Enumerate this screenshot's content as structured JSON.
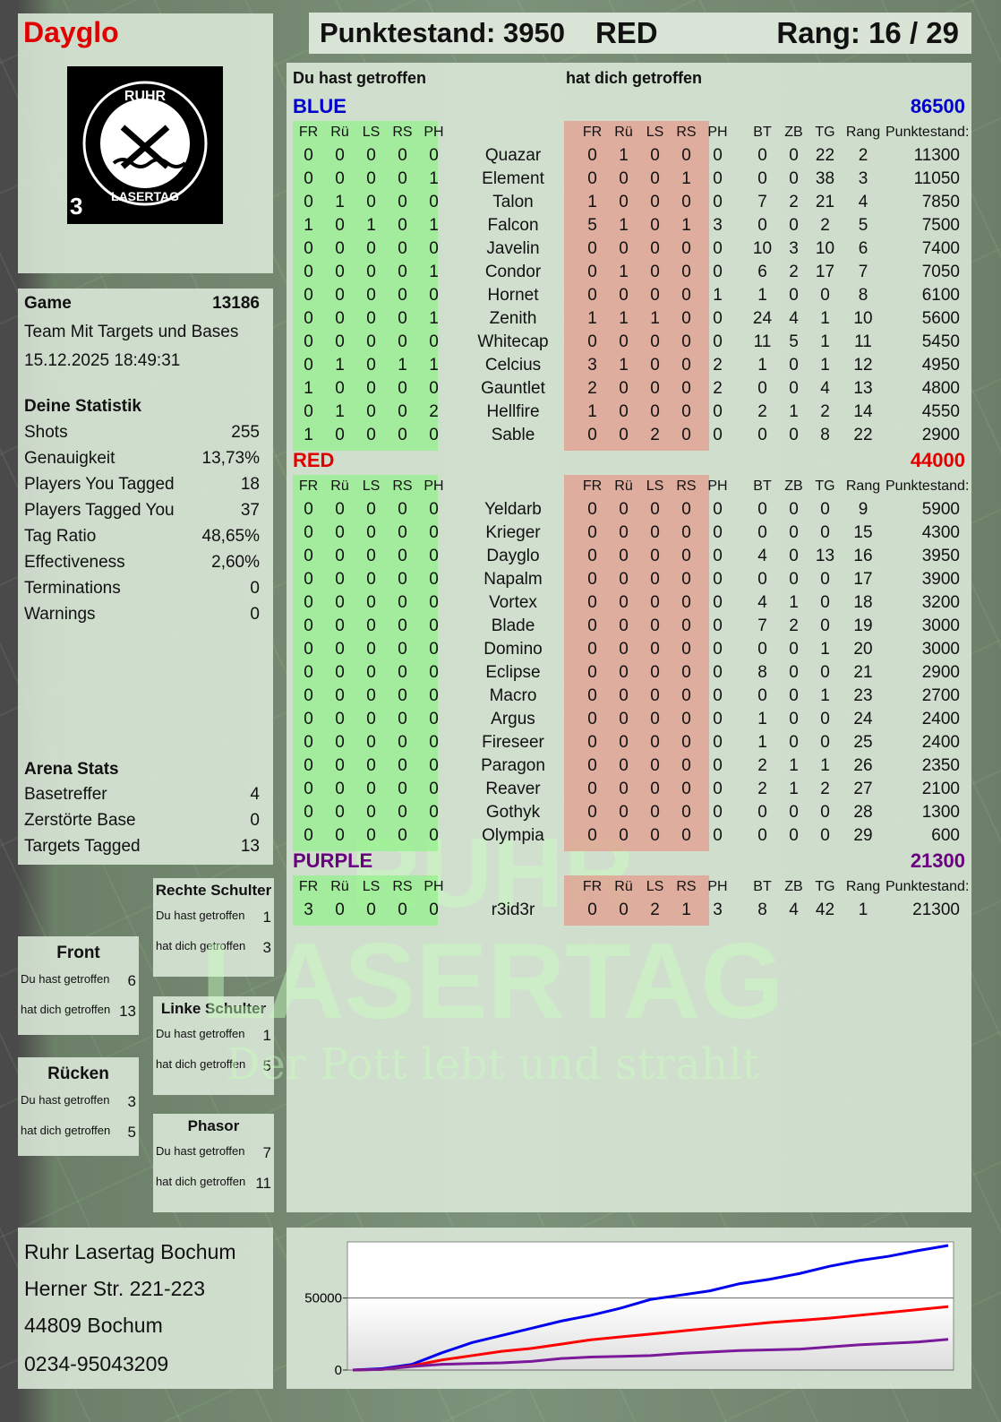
{
  "player": {
    "name": "Dayglo",
    "logo_text": "RUHR LASERTAG",
    "logo_number": "3"
  },
  "header": {
    "score_label": "Punktestand: 3950",
    "team": "RED",
    "rank_label": "Rang: 16 / 29"
  },
  "game": {
    "label": "Game",
    "id": "13186",
    "mode": "Team Mit Targets und Bases",
    "datetime": "15.12.2025 18:49:31"
  },
  "stats": {
    "title": "Deine Statistik",
    "rows": [
      {
        "label": "Shots",
        "value": "255"
      },
      {
        "label": "Genauigkeit",
        "value": "13,73%"
      },
      {
        "label": "Players You Tagged",
        "value": "18"
      },
      {
        "label": "Players Tagged You",
        "value": "37"
      },
      {
        "label": "Tag Ratio",
        "value": "48,65%"
      },
      {
        "label": "Effectiveness",
        "value": "2,60%"
      },
      {
        "label": "Terminations",
        "value": "0"
      },
      {
        "label": "Warnings",
        "value": "0"
      }
    ]
  },
  "arena": {
    "title": "Arena Stats",
    "rows": [
      {
        "label": "Basetreffer",
        "value": "4"
      },
      {
        "label": "Zerstörte Base",
        "value": "0"
      },
      {
        "label": "Targets Tagged",
        "value": "13"
      }
    ]
  },
  "zones": [
    {
      "title": "Rechte Schulter",
      "hit_label": "Du hast getroffen",
      "hit": "1",
      "got_label": "hat dich getroffen",
      "got": "3"
    },
    {
      "title": "Front",
      "hit_label": "Du hast getroffen",
      "hit": "6",
      "got_label": "hat dich getroffen",
      "got": "13"
    },
    {
      "title": "Linke Schulter",
      "hit_label": "Du hast getroffen",
      "hit": "1",
      "got_label": "hat dich getroffen",
      "got": "5"
    },
    {
      "title": "Rücken",
      "hit_label": "Du hast getroffen",
      "hit": "3",
      "got_label": "hat dich getroffen",
      "got": "5"
    },
    {
      "title": "Phasor",
      "hit_label": "Du hast getroffen",
      "hit": "7",
      "got_label": "hat dich getroffen",
      "got": "11"
    }
  ],
  "address": {
    "name": "Ruhr Lasertag Bochum",
    "street": "Herner Str. 221-223",
    "city": "44809 Bochum",
    "phone": "0234-95043209"
  },
  "table": {
    "you_hit_label": "Du hast getroffen",
    "hit_you_label": "hat dich getroffen",
    "columns": [
      "FR",
      "Rü",
      "LS",
      "RS",
      "PH",
      "",
      "FR",
      "Rü",
      "LS",
      "RS",
      "PH",
      "BT",
      "ZB",
      "TG",
      "Rang",
      "Punktestand:"
    ],
    "teams": [
      {
        "name": "BLUE",
        "score": "86500",
        "color": "#0000cc",
        "players": [
          [
            "0",
            "0",
            "0",
            "0",
            "0",
            "Quazar",
            "0",
            "1",
            "0",
            "0",
            "0",
            "0",
            "0",
            "22",
            "2",
            "11300"
          ],
          [
            "0",
            "0",
            "0",
            "0",
            "1",
            "Element",
            "0",
            "0",
            "0",
            "1",
            "0",
            "0",
            "0",
            "38",
            "3",
            "11050"
          ],
          [
            "0",
            "1",
            "0",
            "0",
            "0",
            "Talon",
            "1",
            "0",
            "0",
            "0",
            "0",
            "7",
            "2",
            "21",
            "4",
            "7850"
          ],
          [
            "1",
            "0",
            "1",
            "0",
            "1",
            "Falcon",
            "5",
            "1",
            "0",
            "1",
            "3",
            "0",
            "0",
            "2",
            "5",
            "7500"
          ],
          [
            "0",
            "0",
            "0",
            "0",
            "0",
            "Javelin",
            "0",
            "0",
            "0",
            "0",
            "0",
            "10",
            "3",
            "10",
            "6",
            "7400"
          ],
          [
            "0",
            "0",
            "0",
            "0",
            "1",
            "Condor",
            "0",
            "1",
            "0",
            "0",
            "0",
            "6",
            "2",
            "17",
            "7",
            "7050"
          ],
          [
            "0",
            "0",
            "0",
            "0",
            "0",
            "Hornet",
            "0",
            "0",
            "0",
            "0",
            "1",
            "1",
            "0",
            "0",
            "8",
            "6100"
          ],
          [
            "0",
            "0",
            "0",
            "0",
            "1",
            "Zenith",
            "1",
            "1",
            "1",
            "0",
            "0",
            "24",
            "4",
            "1",
            "10",
            "5600"
          ],
          [
            "0",
            "0",
            "0",
            "0",
            "0",
            "Whitecap",
            "0",
            "0",
            "0",
            "0",
            "0",
            "11",
            "5",
            "1",
            "11",
            "5450"
          ],
          [
            "0",
            "1",
            "0",
            "1",
            "1",
            "Celcius",
            "3",
            "1",
            "0",
            "0",
            "2",
            "1",
            "0",
            "1",
            "12",
            "4950"
          ],
          [
            "1",
            "0",
            "0",
            "0",
            "0",
            "Gauntlet",
            "2",
            "0",
            "0",
            "0",
            "2",
            "0",
            "0",
            "4",
            "13",
            "4800"
          ],
          [
            "0",
            "1",
            "0",
            "0",
            "2",
            "Hellfire",
            "1",
            "0",
            "0",
            "0",
            "0",
            "2",
            "1",
            "2",
            "14",
            "4550"
          ],
          [
            "1",
            "0",
            "0",
            "0",
            "0",
            "Sable",
            "0",
            "0",
            "2",
            "0",
            "0",
            "0",
            "0",
            "8",
            "22",
            "2900"
          ]
        ]
      },
      {
        "name": "RED",
        "score": "44000",
        "color": "#e00000",
        "players": [
          [
            "0",
            "0",
            "0",
            "0",
            "0",
            "Yeldarb",
            "0",
            "0",
            "0",
            "0",
            "0",
            "0",
            "0",
            "0",
            "9",
            "5900"
          ],
          [
            "0",
            "0",
            "0",
            "0",
            "0",
            "Krieger",
            "0",
            "0",
            "0",
            "0",
            "0",
            "0",
            "0",
            "0",
            "15",
            "4300"
          ],
          [
            "0",
            "0",
            "0",
            "0",
            "0",
            "Dayglo",
            "0",
            "0",
            "0",
            "0",
            "0",
            "4",
            "0",
            "13",
            "16",
            "3950"
          ],
          [
            "0",
            "0",
            "0",
            "0",
            "0",
            "Napalm",
            "0",
            "0",
            "0",
            "0",
            "0",
            "0",
            "0",
            "0",
            "17",
            "3900"
          ],
          [
            "0",
            "0",
            "0",
            "0",
            "0",
            "Vortex",
            "0",
            "0",
            "0",
            "0",
            "0",
            "4",
            "1",
            "0",
            "18",
            "3200"
          ],
          [
            "0",
            "0",
            "0",
            "0",
            "0",
            "Blade",
            "0",
            "0",
            "0",
            "0",
            "0",
            "7",
            "2",
            "0",
            "19",
            "3000"
          ],
          [
            "0",
            "0",
            "0",
            "0",
            "0",
            "Domino",
            "0",
            "0",
            "0",
            "0",
            "0",
            "0",
            "0",
            "1",
            "20",
            "3000"
          ],
          [
            "0",
            "0",
            "0",
            "0",
            "0",
            "Eclipse",
            "0",
            "0",
            "0",
            "0",
            "0",
            "8",
            "0",
            "0",
            "21",
            "2900"
          ],
          [
            "0",
            "0",
            "0",
            "0",
            "0",
            "Macro",
            "0",
            "0",
            "0",
            "0",
            "0",
            "0",
            "0",
            "1",
            "23",
            "2700"
          ],
          [
            "0",
            "0",
            "0",
            "0",
            "0",
            "Argus",
            "0",
            "0",
            "0",
            "0",
            "0",
            "1",
            "0",
            "0",
            "24",
            "2400"
          ],
          [
            "0",
            "0",
            "0",
            "0",
            "0",
            "Fireseer",
            "0",
            "0",
            "0",
            "0",
            "0",
            "1",
            "0",
            "0",
            "25",
            "2400"
          ],
          [
            "0",
            "0",
            "0",
            "0",
            "0",
            "Paragon",
            "0",
            "0",
            "0",
            "0",
            "0",
            "2",
            "1",
            "1",
            "26",
            "2350"
          ],
          [
            "0",
            "0",
            "0",
            "0",
            "0",
            "Reaver",
            "0",
            "0",
            "0",
            "0",
            "0",
            "2",
            "1",
            "2",
            "27",
            "2100"
          ],
          [
            "0",
            "0",
            "0",
            "0",
            "0",
            "Gothyk",
            "0",
            "0",
            "0",
            "0",
            "0",
            "0",
            "0",
            "0",
            "28",
            "1300"
          ],
          [
            "0",
            "0",
            "0",
            "0",
            "0",
            "Olympia",
            "0",
            "0",
            "0",
            "0",
            "0",
            "0",
            "0",
            "0",
            "29",
            "600"
          ]
        ]
      },
      {
        "name": "PURPLE",
        "score": "21300",
        "color": "#6a0080",
        "players": [
          [
            "3",
            "0",
            "0",
            "0",
            "0",
            "r3id3r",
            "0",
            "0",
            "2",
            "1",
            "3",
            "8",
            "4",
            "42",
            "1",
            "21300"
          ]
        ]
      }
    ]
  },
  "watermark": {
    "line1": "RUHR",
    "line2": "LASERTAG",
    "tagline": "Der Pott lebt und strahlt"
  },
  "chart_data": {
    "type": "line",
    "ylim": [
      0,
      89000
    ],
    "yticks": [
      "0",
      "50000"
    ],
    "grid": true,
    "legend": "none",
    "series": [
      {
        "color": "#0000ee",
        "values": [
          0,
          1000,
          4000,
          12000,
          19000,
          24000,
          29000,
          34000,
          38000,
          43000,
          49000,
          52000,
          55000,
          60000,
          63000,
          67000,
          72000,
          76000,
          79000,
          83000,
          86500
        ]
      },
      {
        "color": "#ff0000",
        "values": [
          0,
          500,
          3000,
          7000,
          10000,
          13000,
          15000,
          18000,
          21000,
          23000,
          25000,
          27000,
          29000,
          31000,
          33000,
          34500,
          36000,
          38000,
          40000,
          42000,
          44000
        ]
      },
      {
        "color": "#7a1a9a",
        "values": [
          0,
          500,
          2500,
          4000,
          4500,
          5000,
          6000,
          8000,
          9000,
          9500,
          10000,
          11500,
          12500,
          13500,
          14000,
          14500,
          16000,
          17500,
          18500,
          19500,
          21300
        ]
      }
    ]
  }
}
